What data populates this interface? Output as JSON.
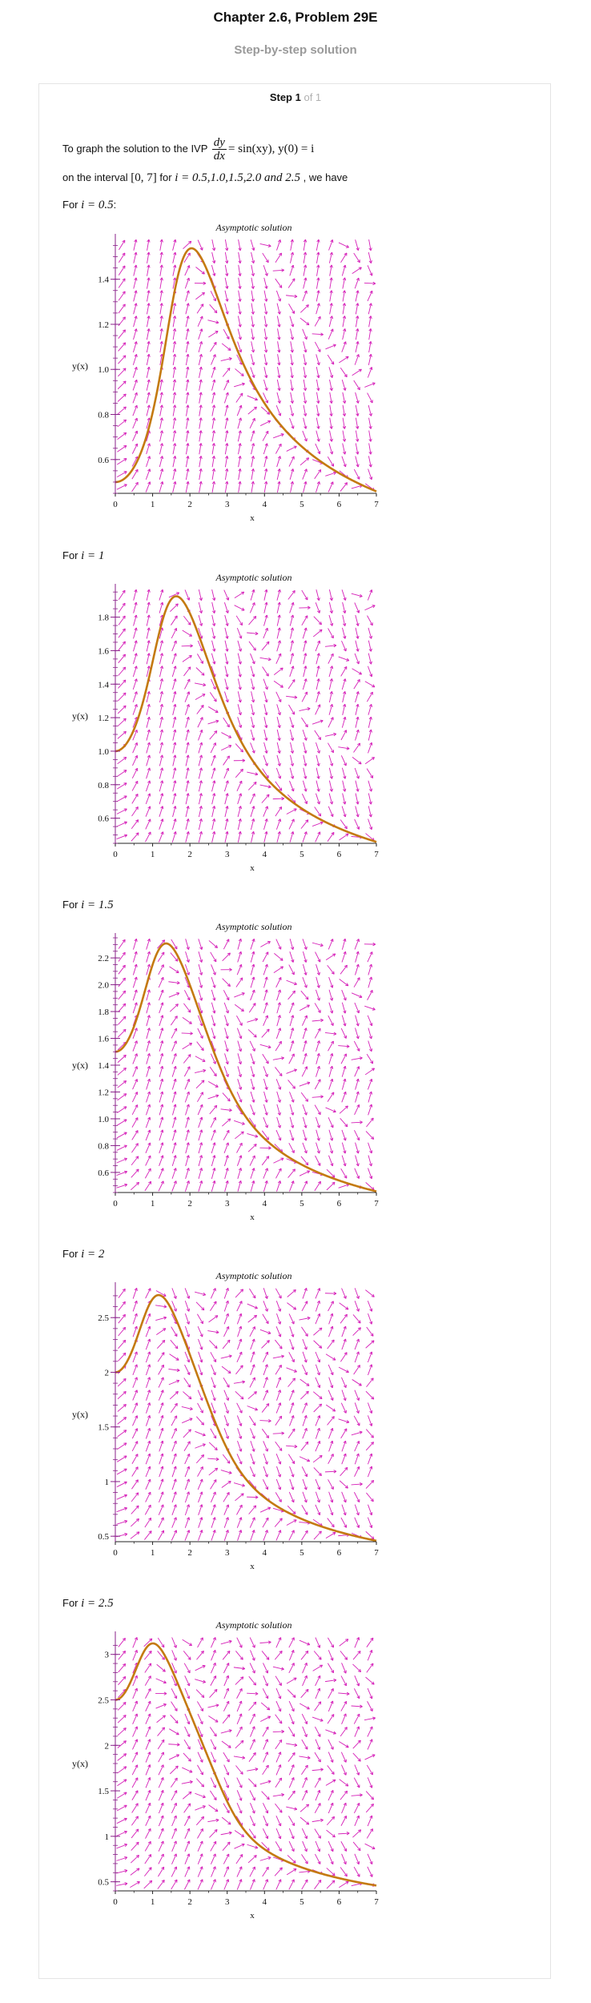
{
  "header": {
    "chapter_title": "Chapter 2.6, Problem 29E",
    "subtitle": "Step-by-step solution"
  },
  "step": {
    "label": "Step 1",
    "of": "of 1"
  },
  "intro": {
    "line1_text": "To graph the solution to the IVP",
    "ode_num": "dy",
    "ode_den": "dx",
    "ode_rhs": "= sin(xy), y(0) = i",
    "line2_a": "on the interval",
    "interval": "[0, 7]",
    "line2_b": "for",
    "values": "i = 0.5,1.0,1.5,2.0 and 2.5",
    "line2_c": ", we have"
  },
  "colors": {
    "field": "#d51fb8",
    "curve": "#c47a10",
    "axis": "#8a1f8a"
  },
  "plots": [
    {
      "for_text": "For",
      "i_label": "i = 0.5",
      "colon": ":"
    },
    {
      "for_text": "For",
      "i_label": "i = 1",
      "colon": ""
    },
    {
      "for_text": "For",
      "i_label": "i = 1.5",
      "colon": ""
    },
    {
      "for_text": "For",
      "i_label": "i = 2",
      "colon": ""
    },
    {
      "for_text": "For",
      "i_label": "i = 2.5",
      "colon": ""
    }
  ],
  "chart_data": [
    {
      "type": "line",
      "title": "Asymptotic solution",
      "xlabel": "x",
      "ylabel": "y(x)",
      "initial_value": 0.5,
      "xlim": [
        0,
        7
      ],
      "ylim": [
        0.45,
        1.58
      ],
      "x_ticks": [
        "0",
        "1",
        "2",
        "3",
        "4",
        "5",
        "6",
        "7"
      ],
      "y_ticks": [
        0.6,
        0.8,
        1.0,
        1.2,
        1.4
      ],
      "y_tick_labels": [
        "0.6",
        "0.8",
        "1.0",
        "1.2",
        "1.4"
      ],
      "peak": [
        2.05,
        1.53
      ],
      "end_value": 0.46
    },
    {
      "type": "line",
      "title": "Asymptotic solution",
      "xlabel": "x",
      "ylabel": "y(x)",
      "initial_value": 1.0,
      "xlim": [
        0,
        7
      ],
      "ylim": [
        0.45,
        1.97
      ],
      "x_ticks": [
        "0",
        "1",
        "2",
        "3",
        "4",
        "5",
        "6",
        "7"
      ],
      "y_ticks": [
        0.6,
        0.8,
        1.0,
        1.2,
        1.4,
        1.6,
        1.8
      ],
      "y_tick_labels": [
        "0.6",
        "0.8",
        "1.0",
        "1.2",
        "1.4",
        "1.6",
        "1.8"
      ],
      "peak": [
        1.65,
        1.92
      ],
      "end_value": 0.47
    },
    {
      "type": "line",
      "title": "Asymptotic solution",
      "xlabel": "x",
      "ylabel": "y(x)",
      "initial_value": 1.5,
      "xlim": [
        0,
        7
      ],
      "ylim": [
        0.45,
        2.35
      ],
      "x_ticks": [
        "0",
        "1",
        "2",
        "3",
        "4",
        "5",
        "6",
        "7"
      ],
      "y_ticks": [
        0.6,
        0.8,
        1.0,
        1.2,
        1.4,
        1.6,
        1.8,
        2.0,
        2.2
      ],
      "y_tick_labels": [
        "0.6",
        "0.8",
        "1.0",
        "1.2",
        "1.4",
        "1.6",
        "1.8",
        "2.0",
        "2.2"
      ],
      "peak": [
        1.4,
        2.31
      ],
      "end_value": 0.48
    },
    {
      "type": "line",
      "title": "Asymptotic solution",
      "xlabel": "x",
      "ylabel": "y(x)",
      "initial_value": 2.0,
      "xlim": [
        0,
        7
      ],
      "ylim": [
        0.45,
        2.78
      ],
      "x_ticks": [
        "0",
        "1",
        "2",
        "3",
        "4",
        "5",
        "6",
        "7"
      ],
      "y_ticks": [
        0.5,
        1,
        1.5,
        2,
        2.5
      ],
      "y_tick_labels": [
        "0.5",
        "1",
        "1.5",
        "2",
        "2.5"
      ],
      "peak": [
        1.15,
        2.72
      ],
      "end_value": 0.47
    },
    {
      "type": "line",
      "title": "Asymptotic solution",
      "xlabel": "x",
      "ylabel": "y(x)",
      "initial_value": 2.5,
      "xlim": [
        0,
        7
      ],
      "ylim": [
        0.4,
        3.2
      ],
      "x_ticks": [
        "0",
        "1",
        "2",
        "3",
        "4",
        "5",
        "6",
        "7"
      ],
      "y_ticks": [
        0.5,
        1,
        1.5,
        2,
        2.5,
        3
      ],
      "y_tick_labels": [
        "0.5",
        "1",
        "1.5",
        "2",
        "2.5",
        "3"
      ],
      "peak": [
        1.05,
        3.13
      ],
      "end_value": 0.47
    }
  ]
}
